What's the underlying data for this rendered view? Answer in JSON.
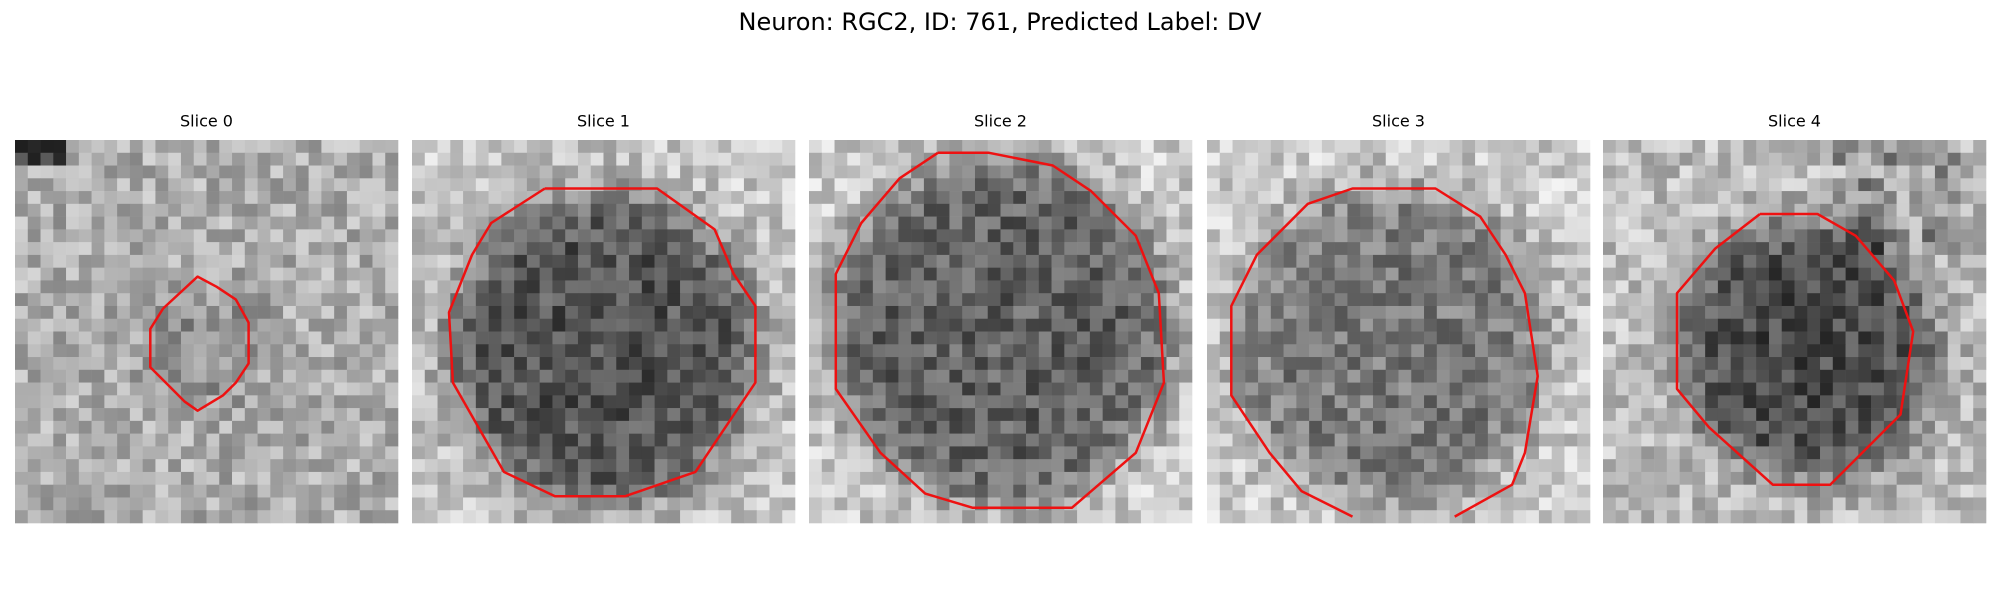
{
  "title": "Neuron: RGC2, ID: 761, Predicted Label: DV",
  "panels": [
    {
      "title": "Slice 0"
    },
    {
      "title": "Slice 1"
    },
    {
      "title": "Slice 2"
    },
    {
      "title": "Slice 3"
    },
    {
      "title": "Slice 4"
    }
  ]
}
